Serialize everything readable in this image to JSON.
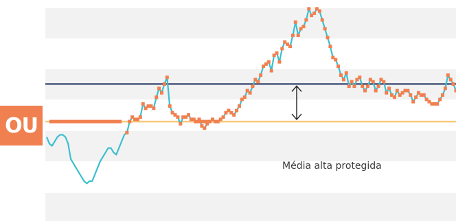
{
  "badge": {
    "text": "OU",
    "color": "#F08050"
  },
  "annotation": {
    "text": "Média alta protegida"
  },
  "colors": {
    "band": "#F2F2F2",
    "series_line": "#3CBFCF",
    "segment_line": "#F08050",
    "marker": "#F08050",
    "upper_level": "#1A2B5A",
    "lower_level": "#F7C97A",
    "arrow": "#222222"
  },
  "chart_data": {
    "type": "line",
    "title": "",
    "xlabel": "",
    "ylabel": "",
    "ylim": [
      0,
      100
    ],
    "grid": false,
    "legend": "none",
    "series": [
      {
        "values": [
          38,
          35,
          34,
          36,
          38,
          39,
          39,
          38,
          35,
          28,
          26,
          24,
          22,
          20,
          18,
          17,
          18,
          18,
          21,
          24,
          27,
          29,
          31,
          33,
          33,
          31,
          30,
          33,
          36,
          39,
          40,
          45,
          47,
          46,
          46,
          47,
          53,
          51,
          52,
          52,
          51,
          56,
          60,
          58,
          62,
          65,
          52,
          49,
          48,
          47,
          44,
          47,
          47,
          48,
          46,
          46,
          45,
          46,
          43,
          42,
          44,
          45,
          46,
          45,
          45,
          46,
          47,
          49,
          50,
          49,
          48,
          50,
          52,
          55,
          56,
          59,
          58,
          61,
          64,
          63,
          66,
          70,
          71,
          72,
          68,
          75,
          76,
          72,
          78,
          81,
          80,
          79,
          84,
          90,
          84,
          87,
          88,
          91,
          96,
          93,
          94,
          96,
          95,
          91,
          87,
          83,
          79,
          74,
          73,
          70,
          66,
          64,
          67,
          61,
          63,
          61,
          64,
          65,
          61,
          59,
          61,
          64,
          63,
          59,
          61,
          64,
          63,
          58,
          60,
          57,
          56,
          59,
          57,
          58,
          59,
          59,
          57,
          54,
          56,
          58,
          57,
          57,
          55,
          54,
          53,
          53,
          53,
          55,
          57,
          60,
          66,
          64,
          62,
          59
        ],
        "markers": [
          false,
          false,
          false,
          false,
          false,
          false,
          false,
          false,
          false,
          false,
          false,
          false,
          false,
          false,
          false,
          false,
          false,
          false,
          false,
          false,
          false,
          false,
          false,
          false,
          false,
          false,
          false,
          false,
          false,
          false,
          true,
          true,
          true,
          true,
          true,
          true,
          true,
          true,
          true,
          true,
          true,
          true,
          true,
          true,
          true,
          true,
          true,
          true,
          true,
          true,
          true,
          true,
          true,
          true,
          true,
          true,
          true,
          true,
          true,
          true,
          true,
          true,
          true,
          true,
          true,
          true,
          true,
          true,
          true,
          true,
          true,
          true,
          true,
          true,
          true,
          true,
          true,
          true,
          true,
          true,
          true,
          true,
          true,
          true,
          true,
          true,
          true,
          true,
          true,
          true,
          true,
          true,
          true,
          true,
          true,
          true,
          true,
          true,
          true,
          true,
          true,
          true,
          true,
          true,
          true,
          true,
          true,
          true,
          true,
          true,
          true,
          true,
          true,
          true,
          true,
          true,
          true,
          true,
          true,
          true,
          true,
          true,
          true,
          true,
          true,
          true,
          true,
          true,
          true,
          true,
          true,
          true,
          true,
          true,
          true,
          true,
          true,
          true,
          true,
          true,
          true,
          true,
          true,
          true,
          true,
          true,
          true,
          true,
          true,
          true,
          true,
          true,
          true,
          true
        ]
      }
    ],
    "reference_lines": [
      {
        "value": 62,
        "role": "upper"
      },
      {
        "value": 45,
        "role": "lower"
      }
    ],
    "flat_segments": [
      {
        "start": 1,
        "end": 28,
        "value": 45
      },
      {
        "start": 55,
        "end": 61,
        "value": 45
      }
    ]
  }
}
